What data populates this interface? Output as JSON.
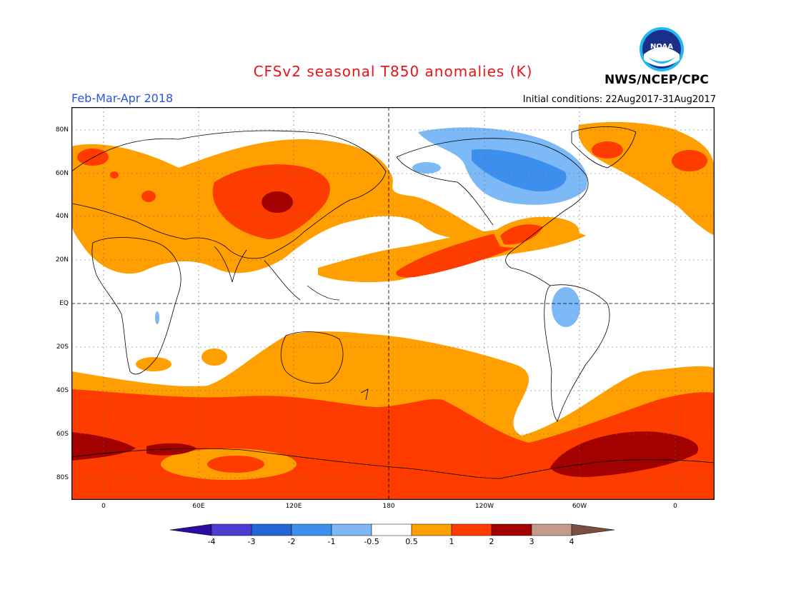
{
  "header": {
    "title": "CFSv2 seasonal T850 anomalies (K)",
    "title_color": "#e8141a",
    "period": "Feb-Mar-Apr 2018",
    "period_color": "#2a52e8",
    "initial_conditions": "Initial conditions: 22Aug2017-31Aug2017",
    "agency": "NWS/NCEP/CPC",
    "logo_text": "NOAA"
  },
  "map": {
    "lat_labels": [
      "80N",
      "60N",
      "40N",
      "20N",
      "EQ",
      "20S",
      "40S",
      "60S",
      "80S"
    ],
    "lon_labels": [
      "0",
      "60E",
      "120E",
      "180",
      "120W",
      "60W",
      "0"
    ],
    "ocean_color": "#ffffff",
    "gridline_style": "dotted"
  },
  "colorbar": {
    "labels": [
      "-4",
      "-3",
      "-2",
      "-1",
      "-0.5",
      "0.5",
      "1",
      "2",
      "3",
      "4"
    ],
    "colors": [
      "#2d0ba3",
      "#4a3ed1",
      "#2366d6",
      "#3d8fee",
      "#7eb9f7",
      "#ffffff",
      "#ff9f00",
      "#ff3c00",
      "#a30000",
      "#c49a8a",
      "#7a4f40"
    ]
  }
}
